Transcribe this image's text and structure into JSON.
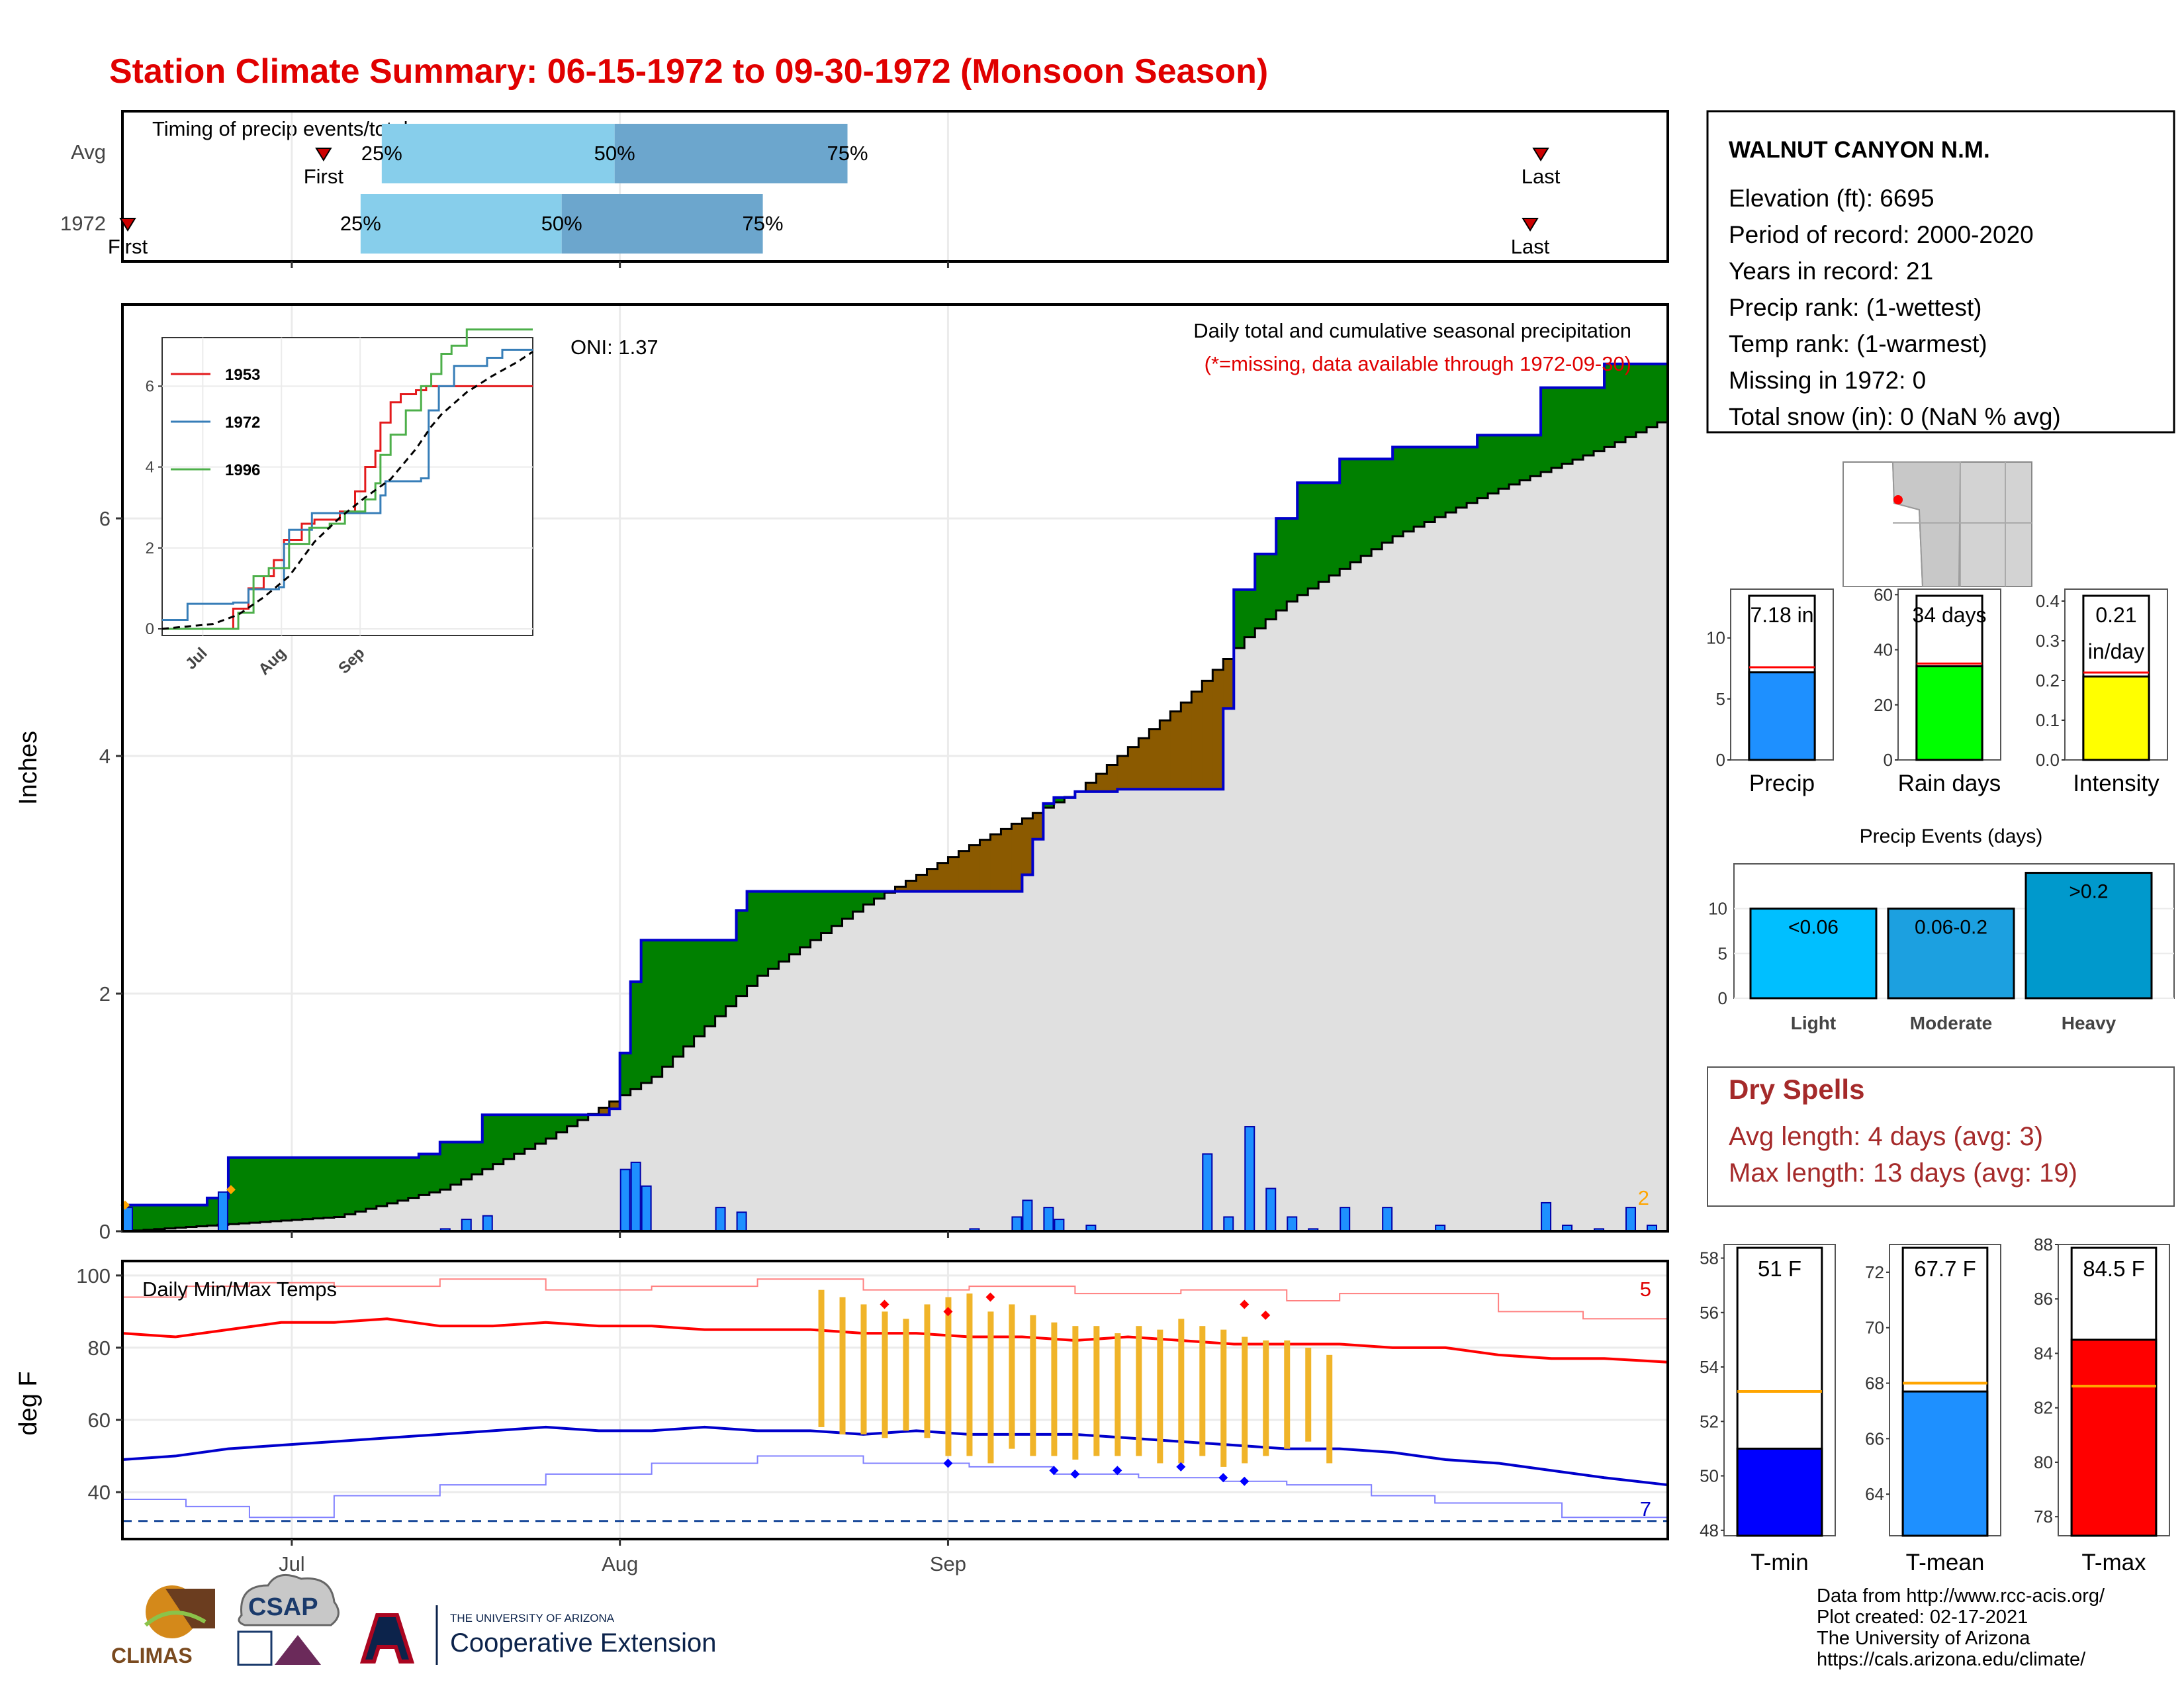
{
  "title": "Station Climate Summary: 06-15-1972 to 09-30-1972 (Monsoon Season)",
  "timing_panel": {
    "label": "Timing of precip events/totals",
    "rows": [
      "Avg",
      "1972"
    ],
    "avg": {
      "first": "First",
      "last": "Last",
      "q25": "25%",
      "q50": "50%",
      "q75": "75%"
    },
    "y1972": {
      "first": "First",
      "last": "Last",
      "q25": "25%",
      "q50": "50%",
      "q75": "75%"
    },
    "colors": {
      "light": "#87CEEB",
      "dark": "#6CA6CD",
      "marker": "#cc0000"
    }
  },
  "main_panel": {
    "ylabel": "Inches",
    "oni": "ONI: 1.37",
    "desc1": "Daily total and cumulative seasonal precipitation",
    "desc2": "(*=missing, data available through 1972-09-30)",
    "corner_count": "2",
    "yticks": [
      "0",
      "2",
      "4",
      "6"
    ],
    "colors": {
      "above": "#008000",
      "below": "#8B5A00",
      "avg_fill": "#e0e0e0",
      "bars": "#1E90FF",
      "line": "#0000cc"
    }
  },
  "inset": {
    "legend": [
      "1953",
      "1972",
      "1996"
    ],
    "legend_colors": [
      "#e31a1c",
      "#377eb8",
      "#4daf4a"
    ],
    "yticks": [
      "0",
      "2",
      "4",
      "6"
    ],
    "xticks": [
      "Jul",
      "Aug",
      "Sep"
    ]
  },
  "temp_panel": {
    "label": "Daily Min/Max Temps",
    "ylabel": "deg F",
    "yticks": [
      "40",
      "60",
      "80",
      "100"
    ],
    "count_hot": "5",
    "count_cold": "7",
    "xticks": [
      "Jul",
      "Aug",
      "Sep"
    ]
  },
  "station": {
    "name": "WALNUT CANYON N.M.",
    "lines": [
      "Elevation (ft): 6695",
      "Period of record: 2000-2020",
      "Years in record: 21",
      "Precip rank:  (1-wettest)",
      "Temp rank:  (1-warmest)",
      "Missing in 1972: 0",
      "Total snow (in): 0 (NaN % avg)"
    ]
  },
  "summary_bars": {
    "precip": {
      "label": "Precip",
      "value_text": "7.18 in",
      "value": 7.18,
      "avg": 7.6,
      "ymax": 14,
      "ticks": [
        "0",
        "5",
        "10"
      ],
      "color": "#1E90FF"
    },
    "rain_days": {
      "label": "Rain days",
      "value_text": "34 days",
      "value": 34,
      "avg": 35,
      "ymax": 62,
      "ticks": [
        "0",
        "20",
        "40",
        "60"
      ],
      "color": "#00ff00"
    },
    "intensity": {
      "label": "Intensity",
      "value_text1": "0.21",
      "value_text2": "in/day",
      "value": 0.21,
      "avg": 0.22,
      "ymax": 0.43,
      "ticks": [
        "0.0",
        "0.1",
        "0.2",
        "0.3",
        "0.4"
      ],
      "color": "#ffff00"
    }
  },
  "precip_events": {
    "title": "Precip Events (days)",
    "ticks": [
      "0",
      "5",
      "10"
    ],
    "categories": [
      {
        "label": "Light",
        "bar_text": "<0.06",
        "value": 10,
        "color": "#00BFFF"
      },
      {
        "label": "Moderate",
        "bar_text": "0.06-0.2",
        "value": 10,
        "color": "#1CA0E0"
      },
      {
        "label": "Heavy",
        "bar_text": ">0.2",
        "value": 14,
        "color": "#0099CC"
      }
    ]
  },
  "dry_spells": {
    "title": "Dry Spells",
    "avg": "Avg length: 4 days (avg: 3)",
    "max": "Max length: 13 days (avg: 19)"
  },
  "temp_bars": {
    "tmin": {
      "label": "T-min",
      "value_text": "51 F",
      "value": 51.0,
      "avg": 53.1,
      "min": 47.8,
      "max": 58.5,
      "ticks": [
        "48",
        "50",
        "52",
        "54",
        "56",
        "58"
      ],
      "color": "#0000ff"
    },
    "tmean": {
      "label": "T-mean",
      "value_text": "67.7 F",
      "value": 67.7,
      "avg": 68.0,
      "min": 62.5,
      "max": 73.0,
      "ticks": [
        "64",
        "66",
        "68",
        "70",
        "72"
      ],
      "color": "#1E90FF"
    },
    "tmax": {
      "label": "T-max",
      "value_text": "84.5 F",
      "value": 84.5,
      "avg": 82.8,
      "min": 77.3,
      "max": 88.0,
      "ticks": [
        "78",
        "80",
        "82",
        "84",
        "86",
        "88"
      ],
      "color": "#ff0000"
    }
  },
  "footer": {
    "credits": [
      "Data from http://www.rcc-acis.org/",
      "Plot created: 02-17-2021",
      "The University of Arizona",
      "https://cals.arizona.edu/climate/"
    ],
    "logo_climas": "CLIMAS",
    "logo_csap": "CSAP",
    "logo_ua_top": "THE UNIVERSITY OF ARIZONA",
    "logo_ua_bottom": "Cooperative Extension"
  },
  "chart_data": {
    "type": "area",
    "title": "Station Climate Summary: 06-15-1972 to 09-30-1972 (Monsoon Season)",
    "ylabel": "Inches",
    "ylim": [
      0,
      7.8
    ],
    "xlim": [
      "06-15",
      "09-30"
    ],
    "cum_1972": [
      [
        0,
        0.22
      ],
      [
        2,
        0.22
      ],
      [
        4,
        0.22
      ],
      [
        7,
        0.22
      ],
      [
        8,
        0.28
      ],
      [
        10,
        0.62
      ],
      [
        15,
        0.62
      ],
      [
        20,
        0.62
      ],
      [
        25,
        0.62
      ],
      [
        28,
        0.65
      ],
      [
        30,
        0.75
      ],
      [
        34,
        0.98
      ],
      [
        38,
        0.98
      ],
      [
        40,
        0.98
      ],
      [
        44,
        0.98
      ],
      [
        46,
        1.03
      ],
      [
        47,
        1.5
      ],
      [
        48,
        2.1
      ],
      [
        49,
        2.45
      ],
      [
        50,
        2.45
      ],
      [
        55,
        2.45
      ],
      [
        58,
        2.7
      ],
      [
        59,
        2.86
      ],
      [
        62,
        2.86
      ],
      [
        66,
        2.86
      ],
      [
        70,
        2.86
      ],
      [
        72,
        2.86
      ],
      [
        75,
        2.86
      ],
      [
        78,
        2.86
      ],
      [
        80,
        2.86
      ],
      [
        84,
        2.86
      ],
      [
        85,
        3.0
      ],
      [
        86,
        3.3
      ],
      [
        87,
        3.6
      ],
      [
        88,
        3.65
      ],
      [
        90,
        3.7
      ],
      [
        92,
        3.7
      ],
      [
        94,
        3.72
      ],
      [
        96,
        3.72
      ],
      [
        100,
        3.72
      ],
      [
        102,
        3.72
      ],
      [
        104,
        4.4
      ],
      [
        105,
        5.4
      ],
      [
        107,
        5.7
      ],
      [
        109,
        6.0
      ],
      [
        111,
        6.3
      ],
      [
        113,
        6.3
      ],
      [
        115,
        6.5
      ],
      [
        118,
        6.5
      ],
      [
        120,
        6.6
      ],
      [
        125,
        6.6
      ],
      [
        128,
        6.7
      ],
      [
        130,
        6.7
      ],
      [
        132,
        6.7
      ],
      [
        134,
        7.1
      ],
      [
        138,
        7.1
      ],
      [
        140,
        7.3
      ],
      [
        145,
        7.3
      ],
      [
        146,
        7.18
      ]
    ],
    "cum_avg": [
      [
        0,
        0.0
      ],
      [
        10,
        0.06
      ],
      [
        20,
        0.12
      ],
      [
        30,
        0.35
      ],
      [
        40,
        0.78
      ],
      [
        50,
        1.3
      ],
      [
        60,
        2.15
      ],
      [
        70,
        2.75
      ],
      [
        80,
        3.25
      ],
      [
        90,
        3.7
      ],
      [
        100,
        4.45
      ],
      [
        106,
        5.0
      ],
      [
        110,
        5.3
      ],
      [
        120,
        5.85
      ],
      [
        130,
        6.25
      ],
      [
        140,
        6.6
      ],
      [
        146,
        6.85
      ]
    ],
    "daily_1972": [
      [
        0,
        0.2
      ],
      [
        9,
        0.33
      ],
      [
        30,
        0.02
      ],
      [
        32,
        0.1
      ],
      [
        34,
        0.13
      ],
      [
        47,
        0.52
      ],
      [
        48,
        0.58
      ],
      [
        49,
        0.38
      ],
      [
        56,
        0.2
      ],
      [
        58,
        0.16
      ],
      [
        80,
        0.02
      ],
      [
        84,
        0.12
      ],
      [
        85,
        0.26
      ],
      [
        87,
        0.2
      ],
      [
        88,
        0.1
      ],
      [
        91,
        0.05
      ],
      [
        102,
        0.65
      ],
      [
        104,
        0.12
      ],
      [
        106,
        0.88
      ],
      [
        108,
        0.36
      ],
      [
        110,
        0.12
      ],
      [
        112,
        0.02
      ],
      [
        115,
        0.2
      ],
      [
        119,
        0.2
      ],
      [
        124,
        0.05
      ],
      [
        134,
        0.24
      ],
      [
        136,
        0.05
      ],
      [
        139,
        0.02
      ],
      [
        142,
        0.2
      ],
      [
        144,
        0.05
      ]
    ],
    "tmax_avg": [
      [
        0,
        84
      ],
      [
        5,
        83
      ],
      [
        10,
        85
      ],
      [
        15,
        87
      ],
      [
        20,
        87
      ],
      [
        25,
        88
      ],
      [
        30,
        86
      ],
      [
        35,
        86
      ],
      [
        40,
        87
      ],
      [
        45,
        86
      ],
      [
        50,
        86
      ],
      [
        55,
        85
      ],
      [
        60,
        85
      ],
      [
        65,
        85
      ],
      [
        70,
        84
      ],
      [
        75,
        84
      ],
      [
        80,
        83
      ],
      [
        85,
        83
      ],
      [
        90,
        82
      ],
      [
        95,
        83
      ],
      [
        100,
        82
      ],
      [
        105,
        81
      ],
      [
        110,
        81
      ],
      [
        115,
        81
      ],
      [
        120,
        80
      ],
      [
        125,
        80
      ],
      [
        130,
        78
      ],
      [
        135,
        77
      ],
      [
        140,
        77
      ],
      [
        146,
        76
      ]
    ],
    "tmin_avg": [
      [
        0,
        49
      ],
      [
        5,
        50
      ],
      [
        10,
        52
      ],
      [
        15,
        53
      ],
      [
        20,
        54
      ],
      [
        25,
        55
      ],
      [
        30,
        56
      ],
      [
        35,
        57
      ],
      [
        40,
        58
      ],
      [
        45,
        57
      ],
      [
        50,
        57
      ],
      [
        55,
        58
      ],
      [
        60,
        57
      ],
      [
        65,
        57
      ],
      [
        70,
        56
      ],
      [
        75,
        57
      ],
      [
        80,
        56
      ],
      [
        85,
        56
      ],
      [
        90,
        56
      ],
      [
        95,
        55
      ],
      [
        100,
        54
      ],
      [
        105,
        53
      ],
      [
        110,
        52
      ],
      [
        115,
        52
      ],
      [
        120,
        51
      ],
      [
        125,
        49
      ],
      [
        130,
        48
      ],
      [
        135,
        46
      ],
      [
        140,
        44
      ],
      [
        146,
        42
      ]
    ],
    "temp_ranges_1972": [
      [
        66,
        58,
        96
      ],
      [
        68,
        56,
        94
      ],
      [
        70,
        56,
        92
      ],
      [
        72,
        55,
        90
      ],
      [
        74,
        57,
        88
      ],
      [
        76,
        55,
        92
      ],
      [
        78,
        50,
        94
      ],
      [
        80,
        50,
        95
      ],
      [
        82,
        48,
        90
      ],
      [
        84,
        52,
        92
      ],
      [
        86,
        50,
        89
      ],
      [
        88,
        50,
        87
      ],
      [
        90,
        49,
        86
      ],
      [
        92,
        50,
        86
      ],
      [
        94,
        50,
        84
      ],
      [
        96,
        50,
        86
      ],
      [
        98,
        48,
        85
      ],
      [
        100,
        48,
        88
      ],
      [
        102,
        50,
        86
      ],
      [
        104,
        47,
        85
      ],
      [
        106,
        48,
        83
      ],
      [
        108,
        50,
        82
      ],
      [
        110,
        52,
        82
      ],
      [
        112,
        54,
        80
      ],
      [
        114,
        48,
        78
      ]
    ],
    "temp_pct_range": [
      32,
      100
    ],
    "temp_freeze_line": 32
  }
}
